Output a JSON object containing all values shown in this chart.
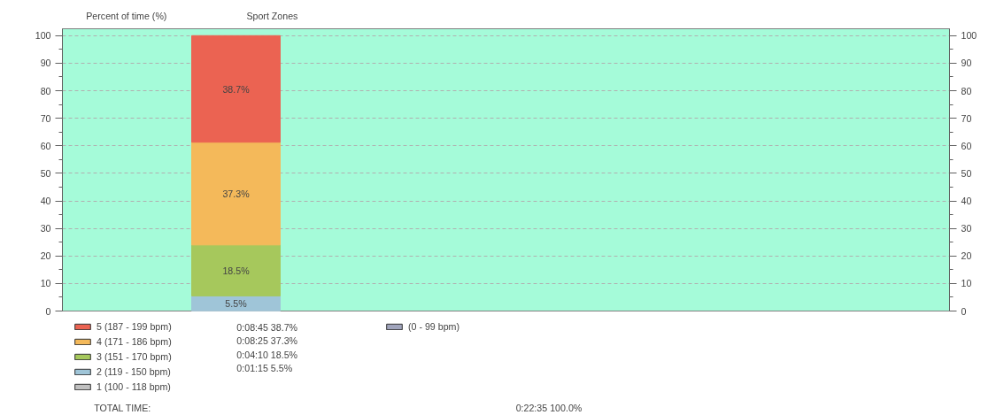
{
  "chart_data": {
    "type": "bar",
    "title": "Sport Zones",
    "ylabel": "Percent of time (%)",
    "categories": [
      null
    ],
    "stacked": true,
    "series": [
      {
        "name": "(0 - 99 bpm)",
        "color": "#a0a4bc",
        "values": [
          0
        ],
        "value_labels": [
          null
        ]
      },
      {
        "name": "1 (100 - 118 bpm)",
        "color": "#c0c0c0",
        "values": [
          0
        ],
        "value_labels": [
          null
        ]
      },
      {
        "name": "2 (119 - 150 bpm)",
        "color": "#9fc5d8",
        "values": [
          5.5
        ],
        "value_labels": [
          "5.5%"
        ]
      },
      {
        "name": "3 (151 - 170 bpm)",
        "color": "#a6c85c",
        "values": [
          18.5
        ],
        "value_labels": [
          "18.5%"
        ]
      },
      {
        "name": "4 (171 - 186 bpm)",
        "color": "#f4b95a",
        "values": [
          37.3
        ],
        "value_labels": [
          "37.3%"
        ]
      },
      {
        "name": "5 (187 - 199 bpm)",
        "color": "#eb6352",
        "values": [
          38.7
        ],
        "value_labels": [
          "38.7%"
        ]
      }
    ],
    "ylim": [
      0,
      102.5
    ],
    "yticks": [
      0,
      10,
      20,
      30,
      40,
      50,
      60,
      70,
      80,
      90,
      100
    ],
    "y2lim": [
      0,
      102.5
    ],
    "y2ticks": [
      0,
      10,
      20,
      30,
      40,
      50,
      60,
      70,
      80,
      90,
      100
    ],
    "grid": "y",
    "legend": "bottom left",
    "annotations": [
      "0:08:45   38.7%",
      "0:08:25   37.3%",
      "0:04:10   18.5%",
      "0:01:15   5.5%",
      "TOTAL TIME:",
      "0:22:35   100.0%"
    ]
  }
}
